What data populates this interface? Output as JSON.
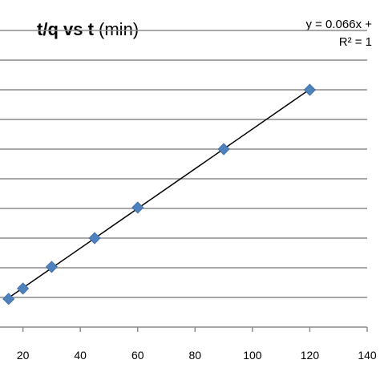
{
  "chart_data": {
    "type": "scatter",
    "title_bold": "t/q  vs t",
    "title_unit": "(min)",
    "x": [
      15,
      20,
      30,
      45,
      60,
      90,
      120
    ],
    "y": [
      0.95,
      1.3,
      2.03,
      3.0,
      4.03,
      6.0,
      8.0
    ],
    "x_ticks": [
      20,
      40,
      60,
      80,
      100,
      120,
      140
    ],
    "xlim": [
      12,
      140
    ],
    "ylim": [
      0,
      10
    ],
    "grid": true,
    "trendline": true,
    "marker_color": "#4f81bd",
    "equation_label": "y = 0.066x +",
    "r2_label": "R² = 1"
  }
}
